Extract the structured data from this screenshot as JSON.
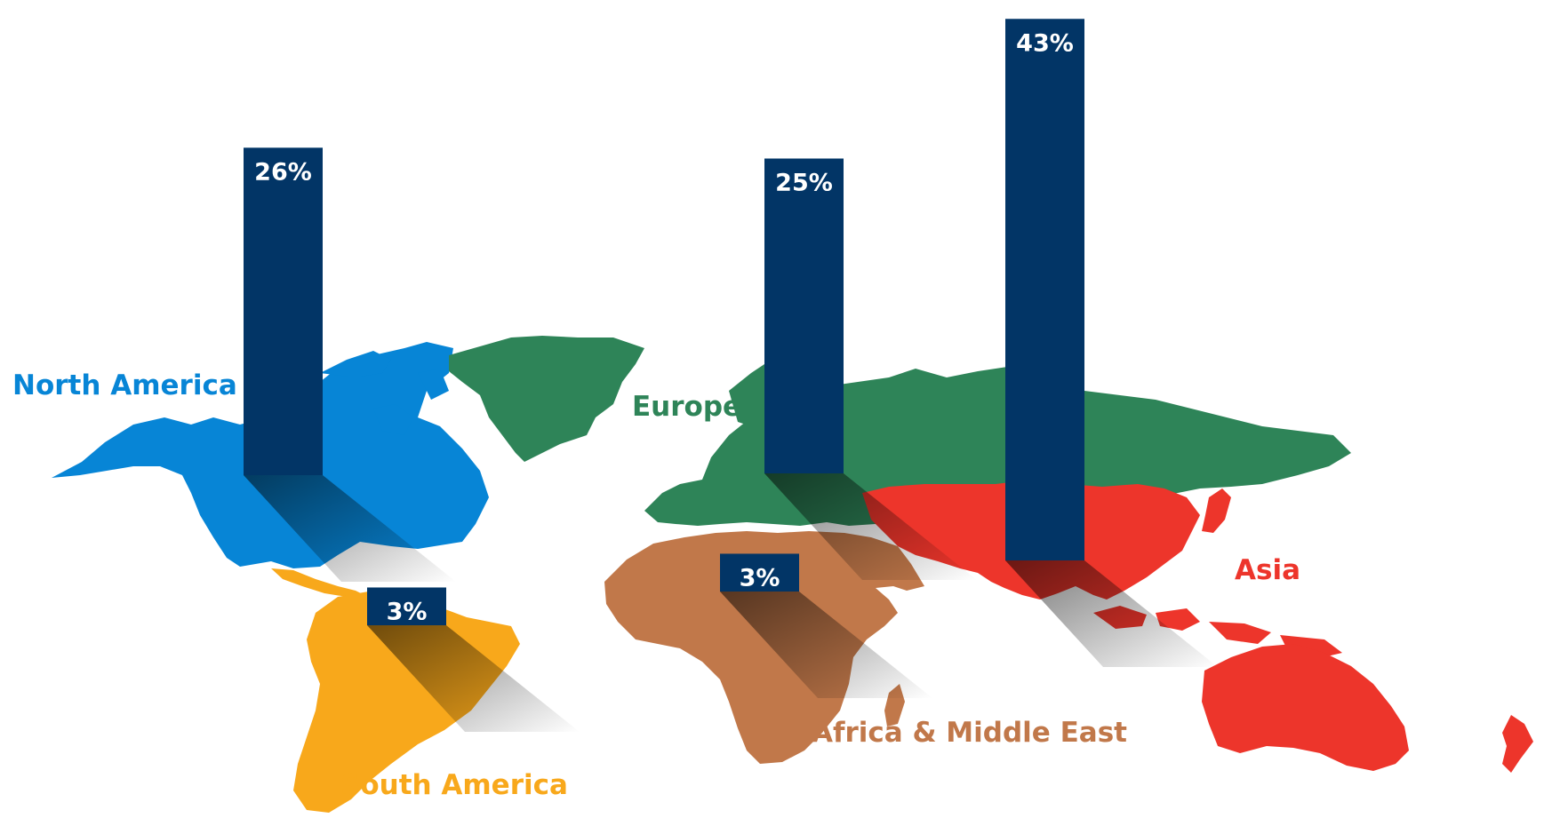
{
  "chart_data": {
    "type": "bar",
    "categories": [
      "North America",
      "South America",
      "Europe",
      "Africa & Middle East",
      "Asia"
    ],
    "values": [
      26,
      3,
      25,
      3,
      43
    ],
    "value_labels": [
      "26%",
      "3%",
      "25%",
      "3%",
      "43%"
    ],
    "unit": "%",
    "colors": {
      "bar": "#023566",
      "north_america": "#0785d6",
      "south_america": "#f8a81b",
      "europe": "#2e8458",
      "africa_middle_east": "#c1784a",
      "asia": "#ed352b"
    }
  }
}
